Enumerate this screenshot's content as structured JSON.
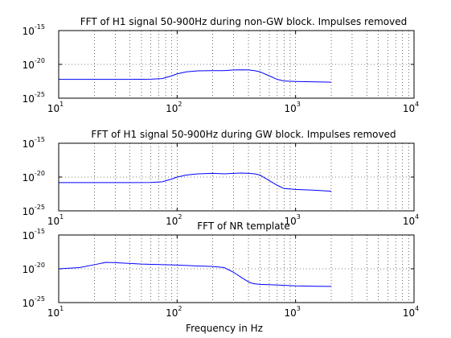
{
  "chart_data": [
    {
      "type": "line",
      "title": "FFT of H1 signal 50-900Hz during non-GW block. Impulses removed",
      "xlabel": "",
      "ylabel": "",
      "xscale": "log",
      "yscale": "log",
      "xlim": [
        10,
        10000
      ],
      "ylim": [
        1e-25,
        1e-15
      ],
      "x_ticks": [
        "10^1",
        "10^2",
        "10^3",
        "10^4"
      ],
      "y_ticks": [
        "10^-25",
        "10^-20",
        "10^-15"
      ],
      "grid": "dotted",
      "line_color": "#0000ff",
      "series": [
        {
          "x": [
            10,
            20,
            40,
            60,
            75,
            90,
            100,
            120,
            150,
            200,
            250,
            300,
            350,
            400,
            450,
            500,
            600,
            700,
            800,
            1000,
            1500,
            2000
          ],
          "y": [
            6e-23,
            6e-23,
            6e-23,
            6.5e-23,
            8e-23,
            2e-22,
            4e-22,
            8e-22,
            1.1e-21,
            1.2e-21,
            1.2e-21,
            1.5e-21,
            1.6e-21,
            1.5e-21,
            1.2e-21,
            8e-22,
            2e-22,
            6e-23,
            3.5e-23,
            3e-23,
            2.6e-23,
            2.3e-23
          ]
        }
      ]
    },
    {
      "type": "line",
      "title": "FFT of H1 signal 50-900Hz during GW block. Impulses removed",
      "xlabel": "",
      "ylabel": "",
      "xscale": "log",
      "yscale": "log",
      "xlim": [
        10,
        10000
      ],
      "ylim": [
        1e-25,
        1e-15
      ],
      "x_ticks": [
        "10^1",
        "10^2",
        "10^3",
        "10^4"
      ],
      "y_ticks": [
        "10^-25",
        "10^-20",
        "10^-15"
      ],
      "grid": "dotted",
      "line_color": "#0000ff",
      "series": [
        {
          "x": [
            10,
            20,
            40,
            60,
            75,
            90,
            100,
            120,
            150,
            200,
            250,
            300,
            350,
            400,
            450,
            500,
            600,
            700,
            800,
            1000,
            1500,
            2000
          ],
          "y": [
            1.5e-21,
            1.5e-21,
            1.5e-21,
            1.6e-21,
            2e-21,
            5e-21,
            1e-20,
            2e-20,
            3e-20,
            3.5e-20,
            3e-20,
            3.5e-20,
            4e-20,
            3.5e-20,
            3e-20,
            2e-20,
            3e-21,
            6e-22,
            2e-22,
            1.5e-22,
            1.1e-22,
            8e-23
          ]
        }
      ]
    },
    {
      "type": "line",
      "title": "FFT of NR template",
      "xlabel": "Frequency in Hz",
      "ylabel": "",
      "xscale": "log",
      "yscale": "log",
      "xlim": [
        10,
        10000
      ],
      "ylim": [
        1e-25,
        1e-15
      ],
      "x_ticks": [
        "10^1",
        "10^2",
        "10^3",
        "10^4"
      ],
      "y_ticks": [
        "10^-25",
        "10^-20",
        "10^-15"
      ],
      "grid": "dotted",
      "line_color": "#0000ff",
      "series": [
        {
          "x": [
            10,
            15,
            20,
            25,
            30,
            50,
            100,
            150,
            200,
            250,
            300,
            350,
            400,
            420,
            450,
            500,
            700,
            1000,
            1500,
            2000
          ],
          "y": [
            1e-20,
            1.5e-20,
            4e-20,
            9e-20,
            8e-20,
            5e-20,
            3.5e-20,
            2.6e-20,
            2.2e-20,
            1.5e-20,
            3e-21,
            5e-22,
            1.2e-22,
            8e-23,
            6e-23,
            5e-23,
            4e-23,
            3e-23,
            2.6e-23,
            2.5e-23
          ]
        }
      ]
    }
  ]
}
